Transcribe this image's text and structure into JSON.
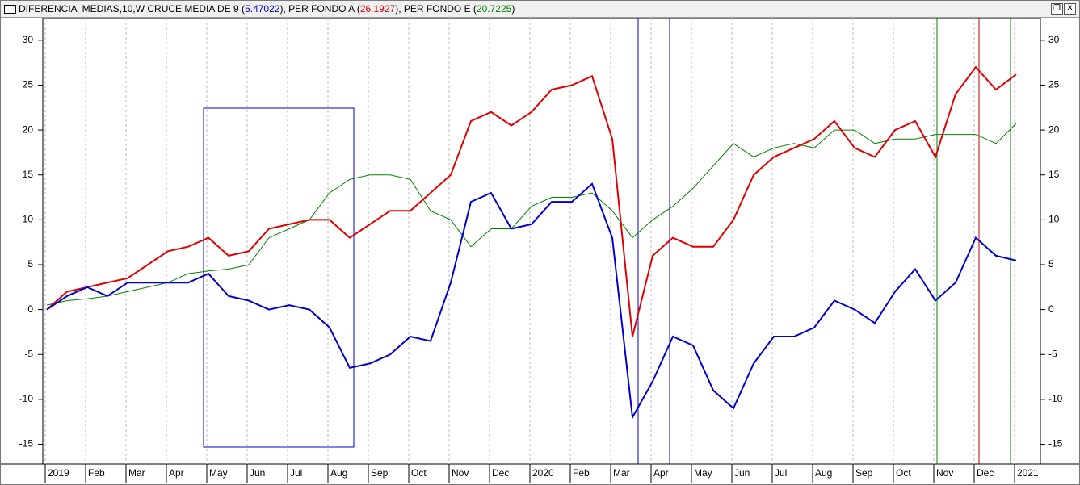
{
  "chart_data": {
    "type": "line",
    "categories": [
      "2019",
      null,
      "Feb",
      null,
      "Mar",
      null,
      "Apr",
      null,
      "May",
      null,
      "Jun",
      null,
      "Jul",
      null,
      "Aug",
      null,
      "Sep",
      null,
      "Oct",
      null,
      "Nov",
      null,
      "Dec",
      null,
      "2020",
      null,
      "Feb",
      null,
      "Mar",
      null,
      "Apr",
      null,
      "May",
      null,
      "Jun",
      null,
      "Jul",
      null,
      "Aug",
      null,
      "Sep",
      null,
      "Oct",
      null,
      "Nov",
      null,
      "Dec",
      null,
      "2021"
    ],
    "series": [
      {
        "name": "DIFERENCIA  MEDIAS,10,W CRUCE MEDIA DE 9",
        "color": "#0000cc",
        "values": [
          0,
          1.5,
          2.5,
          1.5,
          3,
          3,
          3,
          3,
          4,
          1.5,
          1,
          0,
          0.5,
          0,
          -2,
          -6.5,
          -6,
          -5,
          -3,
          -3.5,
          3,
          12,
          13,
          9,
          9.5,
          12,
          12,
          14,
          8,
          -12,
          -8,
          -3,
          -4,
          -9,
          -11,
          -6,
          -3,
          -3,
          -2,
          1,
          0,
          -1.5,
          2,
          4.5,
          1,
          3,
          8,
          6,
          5.47022
        ]
      },
      {
        "name": "PER FONDO A",
        "color": "#e00000",
        "values": [
          0,
          2,
          2.5,
          3,
          3.5,
          5,
          6.5,
          7,
          8,
          6,
          6.5,
          9,
          9.5,
          10,
          10,
          8,
          9.5,
          11,
          11,
          13,
          15,
          21,
          22,
          20.5,
          22,
          24.5,
          25,
          26,
          19,
          -3,
          6,
          8,
          7,
          7,
          10,
          15,
          17,
          18,
          19,
          21,
          18,
          17,
          20,
          21,
          17,
          24,
          27,
          24.5,
          26.1927
        ]
      },
      {
        "name": "PER FONDO E",
        "color": "#008000",
        "values": [
          0.5,
          1,
          1.2,
          1.5,
          2,
          2.5,
          3,
          4,
          4.3,
          4.5,
          5,
          8,
          9,
          10,
          13,
          14.5,
          15,
          15,
          14.5,
          11,
          10,
          7,
          9,
          9,
          11.5,
          12.5,
          12.5,
          13,
          11,
          8,
          10,
          11.5,
          13.5,
          16,
          18.5,
          17,
          18,
          18.5,
          18,
          20,
          20,
          18.5,
          19,
          19,
          19.5,
          19.5,
          19.5,
          18.5,
          20.7225
        ]
      }
    ],
    "ylim": [
      -17.2,
      32.5
    ],
    "yticks": [
      -15,
      -10,
      -5,
      0,
      5,
      10,
      15,
      20,
      25,
      30
    ],
    "grid": true
  }
}
